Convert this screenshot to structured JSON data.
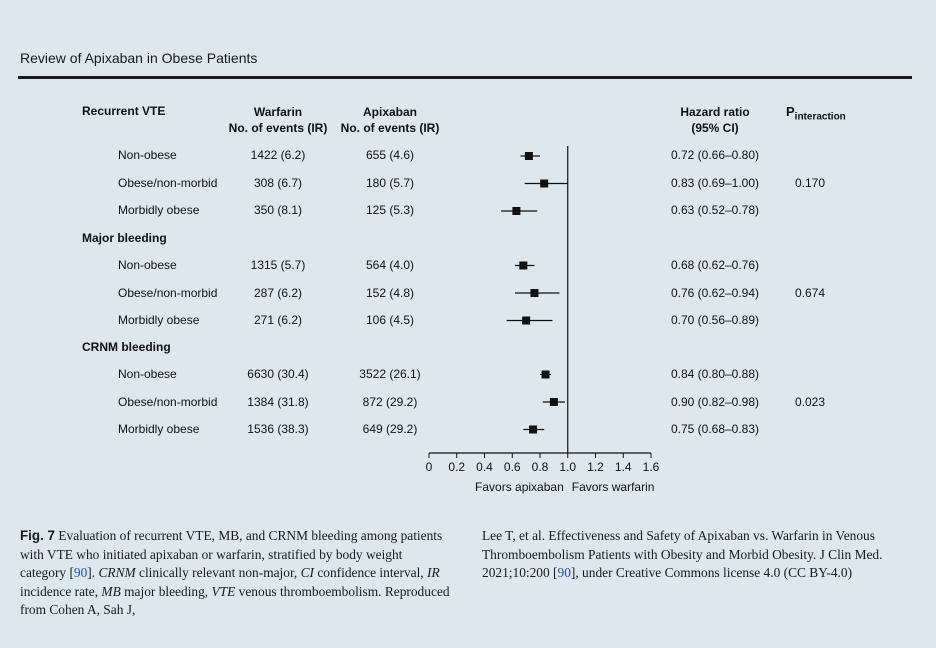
{
  "header": {
    "title": "Review of Apixaban in Obese Patients"
  },
  "columns": {
    "outcome": "Recurrent VTE",
    "warfarin_1": "Warfarin",
    "warfarin_2": "No. of events (IR)",
    "apixaban_1": "Apixaban",
    "apixaban_2": "No. of events (IR)",
    "hr_1": "Hazard ratio",
    "hr_2": "(95% CI)",
    "p_main": "P",
    "p_sub": "interaction"
  },
  "sections": [
    {
      "title": "Recurrent VTE",
      "p_interaction": "0.170",
      "rows": [
        {
          "label": "Non-obese",
          "warfarin": "1422 (6.2)",
          "apixaban": "655 (4.6)",
          "hr_text": "0.72 (0.66–0.80)"
        },
        {
          "label": "Obese/non-morbid",
          "warfarin": "308 (6.7)",
          "apixaban": "180 (5.7)",
          "hr_text": "0.83 (0.69–1.00)"
        },
        {
          "label": "Morbidly obese",
          "warfarin": "350 (8.1)",
          "apixaban": "125 (5.3)",
          "hr_text": "0.63 (0.52–0.78)"
        }
      ]
    },
    {
      "title": "Major bleeding",
      "p_interaction": "0.674",
      "rows": [
        {
          "label": "Non-obese",
          "warfarin": "1315 (5.7)",
          "apixaban": "564 (4.0)",
          "hr_text": "0.68 (0.62–0.76)"
        },
        {
          "label": "Obese/non-morbid",
          "warfarin": "287 (6.2)",
          "apixaban": "152 (4.8)",
          "hr_text": "0.76 (0.62–0.94)"
        },
        {
          "label": "Morbidly obese",
          "warfarin": "271 (6.2)",
          "apixaban": "106 (4.5)",
          "hr_text": "0.70 (0.56–0.89)"
        }
      ]
    },
    {
      "title": "CRNM bleeding",
      "p_interaction": "0.023",
      "rows": [
        {
          "label": "Non-obese",
          "warfarin": "6630 (30.4)",
          "apixaban": "3522 (26.1)",
          "hr_text": "0.84 (0.80–0.88)"
        },
        {
          "label": "Obese/non-morbid",
          "warfarin": "1384 (31.8)",
          "apixaban": "872 (29.2)",
          "hr_text": "0.90 (0.82–0.98)"
        },
        {
          "label": "Morbidly obese",
          "warfarin": "1536 (38.3)",
          "apixaban": "649 (29.2)",
          "hr_text": "0.75 (0.68–0.83)"
        }
      ]
    }
  ],
  "chart_data": {
    "type": "forest",
    "xlim": [
      0,
      1.6
    ],
    "reference_line": 1.0,
    "ticks": [
      "0",
      "0.2",
      "0.4",
      "0.6",
      "0.8",
      "1.0",
      "1.2",
      "1.4",
      "1.6"
    ],
    "xlabel_left": "Favors apixaban",
    "xlabel_right": "Favors warfarin",
    "points": [
      {
        "hr": 0.72,
        "lo": 0.66,
        "hi": 0.8
      },
      {
        "hr": 0.83,
        "lo": 0.69,
        "hi": 1.0
      },
      {
        "hr": 0.63,
        "lo": 0.52,
        "hi": 0.78
      },
      {
        "hr": 0.68,
        "lo": 0.62,
        "hi": 0.76
      },
      {
        "hr": 0.76,
        "lo": 0.62,
        "hi": 0.94
      },
      {
        "hr": 0.7,
        "lo": 0.56,
        "hi": 0.89
      },
      {
        "hr": 0.84,
        "lo": 0.8,
        "hi": 0.88
      },
      {
        "hr": 0.9,
        "lo": 0.82,
        "hi": 0.98
      },
      {
        "hr": 0.75,
        "lo": 0.68,
        "hi": 0.83
      }
    ]
  },
  "caption": {
    "fig": "Fig. 7",
    "left_text_1": " Evaluation of recurrent VTE, MB, and CRNM bleeding among patients with VTE who initiated apixaban or warfarin, stratified by body weight category [",
    "ref1": "90",
    "left_text_2": "]. ",
    "crnm": "CRNM",
    "crnm_def": " clinically relevant non-major, ",
    "ci": "CI",
    "ci_def": " confidence interval, ",
    "ir": "IR",
    "ir_def": " incidence rate, ",
    "mb": "MB",
    "mb_def": " major bleeding, ",
    "vte": "VTE",
    "vte_def": " venous thromboembolism. Reproduced from Cohen A, Sah J,",
    "right_text_1": "Lee T, et al. Effectiveness and Safety of Apixaban vs. Warfarin in Venous Thromboembolism Patients with Obesity and Morbid Obesity. J Clin Med. 2021;10:200 [",
    "ref2": "90",
    "right_text_2": "], under Creative Commons license 4.0 (CC BY-4.0)"
  }
}
